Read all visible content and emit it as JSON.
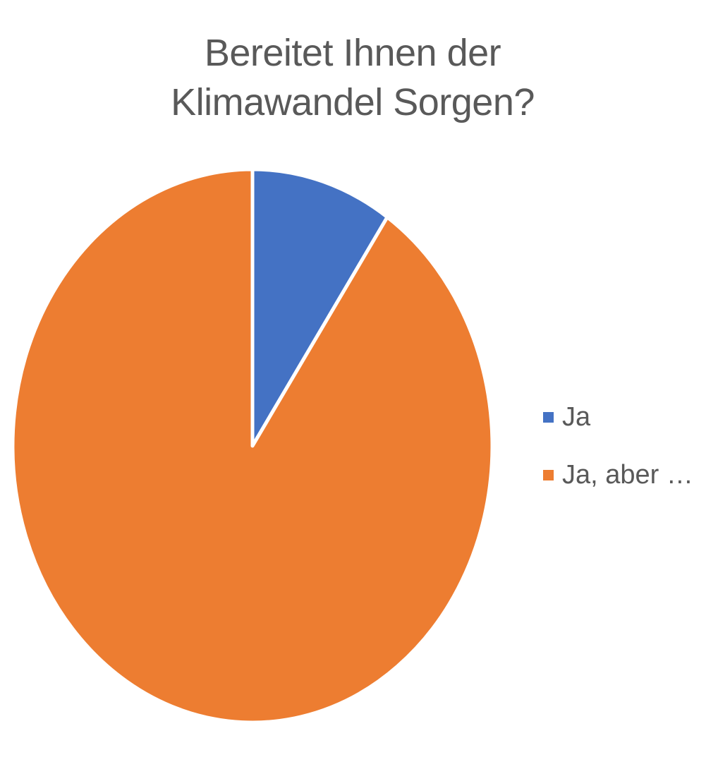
{
  "chart_data": {
    "type": "pie",
    "title_lines": [
      "Bereitet Ihnen der",
      "Klimawandel Sorgen?"
    ],
    "categories": [
      "Ja",
      "Ja, aber …"
    ],
    "values": [
      9.5,
      90.5
    ],
    "colors": [
      "#4472C4",
      "#ED7D31"
    ],
    "legend_position": "right"
  }
}
